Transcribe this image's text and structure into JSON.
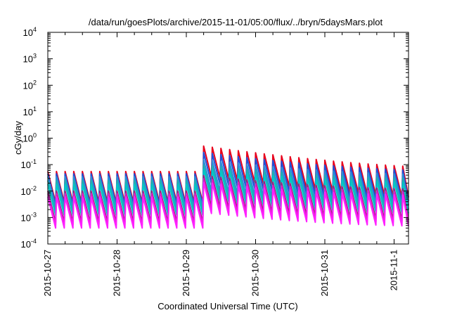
{
  "chart_data": {
    "type": "line",
    "title": "/data/run/goesPlots/archive/2015-11-01/05:00/flux/../bryn/5daysMars.plot",
    "xlabel": "Coordinated Universal Time (UTC)",
    "ylabel": "cGy/day",
    "yscale": "log",
    "ylim": [
      0.0001,
      10000
    ],
    "xlim": [
      "2015-10-27T00:00",
      "2015-11-01T05:00"
    ],
    "grid": false,
    "legend": "none",
    "x_tick_labels": [
      "2015-10-27",
      "2015-10-28",
      "2015-10-29",
      "2015-10-30",
      "2015-10-31",
      "2015-11-1"
    ],
    "y_ticks": [
      {
        "base": "10",
        "exp": "4"
      },
      {
        "base": "10",
        "exp": "3"
      },
      {
        "base": "10",
        "exp": "2"
      },
      {
        "base": "10",
        "exp": "1"
      },
      {
        "base": "10",
        "exp": "0"
      },
      {
        "base": "10",
        "exp": "-1"
      },
      {
        "base": "10",
        "exp": "-2"
      },
      {
        "base": "10",
        "exp": "-3"
      },
      {
        "base": "10",
        "exp": "-4"
      }
    ],
    "event_time": "2015-10-29T05:00",
    "series": [
      {
        "color": "#e8001c",
        "peak_before": 0.055,
        "peak_after": 0.52
      },
      {
        "color": "#1f4fd8",
        "peak_before": 0.045,
        "peak_after": 0.3
      },
      {
        "color": "#2a8fd8",
        "peak_before": 0.035,
        "peak_after": 0.16
      },
      {
        "color": "#20b0b0",
        "peak_before": 0.025,
        "peak_after": 0.1
      },
      {
        "color": "#00c8c8",
        "peak_before": 0.018,
        "peak_after": 0.07
      },
      {
        "color": "#9a2080",
        "peak_before": 0.01,
        "peak_after": 0.04
      },
      {
        "color": "#e020c8",
        "peak_before": 0.008,
        "peak_after": 0.03
      },
      {
        "color": "#ff20ff",
        "peak_before": 0.006,
        "peak_after": 0.022
      }
    ]
  }
}
